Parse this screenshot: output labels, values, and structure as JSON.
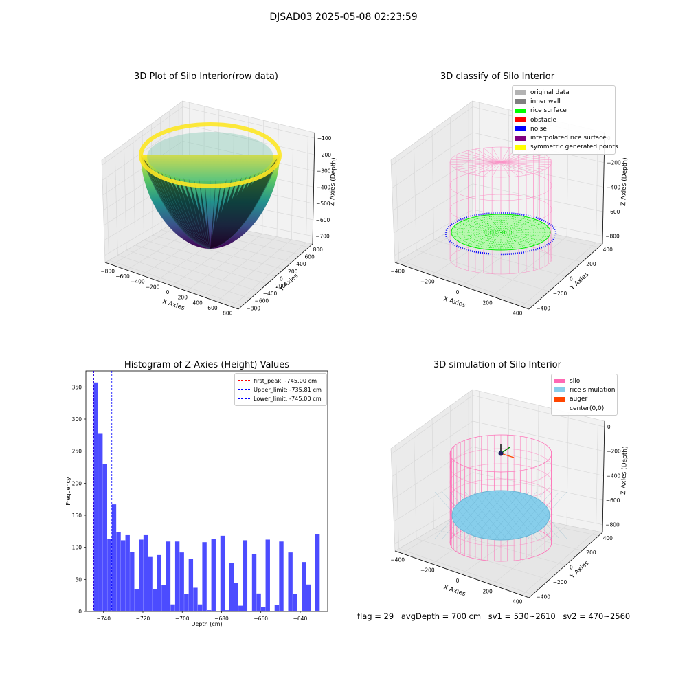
{
  "figure_title": "DJSAD03 2025-05-08 02:23:59",
  "footer": {
    "flag": "flag = 29",
    "avg_depth": "avgDepth = 700 cm",
    "sv1": "sv1 = 530~2610",
    "sv2": "sv2 = 470~2560"
  },
  "panels": {
    "raw": {
      "title": "3D Plot of Silo Interior(row data)",
      "xlabel": "X Axies",
      "ylabel": "Y Axies",
      "zlabel": "Z Axies (Depth)",
      "xticks": [
        "−800",
        "−600",
        "−400",
        "−200",
        "0",
        "200",
        "400",
        "600",
        "800"
      ],
      "yticks": [
        "−800",
        "−600",
        "−400",
        "−200",
        "0",
        "200",
        "400",
        "600",
        "800"
      ],
      "zticks": [
        "−100",
        "−200",
        "−300",
        "−400",
        "−500",
        "−600",
        "−700"
      ]
    },
    "classify": {
      "title": "3D classify of Silo Interior",
      "xlabel": "X Axies",
      "ylabel": "Y Axies",
      "zlabel": "Z Axies (Depth)",
      "xticks": [
        "−400",
        "−200",
        "0",
        "200",
        "400"
      ],
      "yticks": [
        "−400",
        "−200",
        "0",
        "200",
        "400"
      ],
      "zticks": [
        "0",
        "−200",
        "−400",
        "−600",
        "−800"
      ],
      "legend": [
        {
          "label": "original data",
          "color": "#b3b3b3"
        },
        {
          "label": "inner wall",
          "color": "#808080"
        },
        {
          "label": "rice surface",
          "color": "#00ff00"
        },
        {
          "label": "obstacle",
          "color": "#ff0000"
        },
        {
          "label": "noise",
          "color": "#0000ff"
        },
        {
          "label": "interpolated rice surface",
          "color": "#800080"
        },
        {
          "label": "symmetric generated points",
          "color": "#ffff00"
        }
      ]
    },
    "simulation": {
      "title": "3D simulation of Silo Interior",
      "xlabel": "X Axies",
      "ylabel": "Y Axies",
      "zlabel": "Z Axies (Depth)",
      "xticks": [
        "−400",
        "−200",
        "0",
        "200",
        "400"
      ],
      "yticks": [
        "−400",
        "−200",
        "0",
        "200",
        "400"
      ],
      "zticks": [
        "0",
        "−200",
        "−400",
        "−600",
        "−800"
      ],
      "legend": [
        {
          "label": "silo",
          "color": "#ff69b4"
        },
        {
          "label": "rice simulation",
          "color": "#87ceeb"
        },
        {
          "label": "auger",
          "color": "#ff4500"
        },
        {
          "label": "center(0,0)",
          "color": ""
        }
      ]
    }
  },
  "chart_data": {
    "type": "bar",
    "title": "Histogram of Z-Axies (Height) Values",
    "xlabel": "Depth (cm)",
    "ylabel": "Frequency",
    "xlim": [
      -749,
      -626
    ],
    "ylim": [
      0,
      375
    ],
    "xticks": [
      -740,
      -720,
      -700,
      -680,
      -660,
      -640
    ],
    "yticks": [
      0,
      50,
      100,
      150,
      200,
      250,
      300,
      350
    ],
    "bin_start": -745.0,
    "bin_width": 2.3,
    "values": [
      357,
      277,
      230,
      113,
      167,
      124,
      111,
      119,
      93,
      35,
      112,
      119,
      85,
      35,
      88,
      41,
      109,
      11,
      109,
      92,
      27,
      82,
      37,
      11,
      108,
      2,
      113,
      0,
      118,
      2,
      75,
      44,
      9,
      111,
      0,
      90,
      28,
      7,
      112,
      0,
      10,
      109,
      0,
      92,
      27,
      0,
      77,
      42,
      0,
      120
    ],
    "bar_color": "#0000ff",
    "lines": [
      {
        "label": "first_peak: -745.00 cm",
        "x": -745.0,
        "color": "#ff0000"
      },
      {
        "label": "Upper_limit: -735.81 cm",
        "x": -735.81,
        "color": "#0000ff"
      },
      {
        "label": "Lower_limit: -745.00 cm",
        "x": -745.0,
        "color": "#0000ff"
      }
    ],
    "legend_position": "top-right"
  }
}
